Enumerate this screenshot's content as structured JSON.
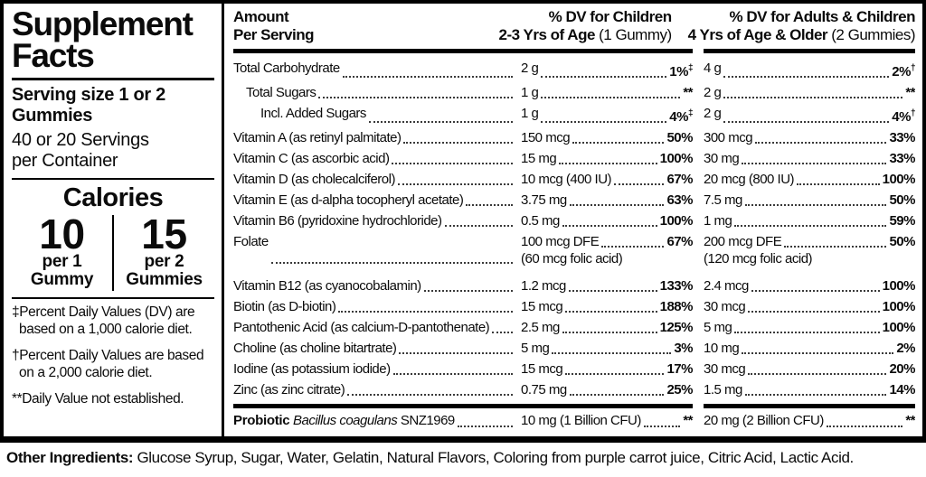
{
  "colors": {
    "ink": "#0b0b0b",
    "rule": "#000000",
    "background": "#ffffff"
  },
  "sidebar": {
    "title_line1": "Supplement",
    "title_line2": "Facts",
    "serving_size_line1": "Serving size 1 or 2",
    "serving_size_line2": "Gummies",
    "servings_line1": "40 or 20 Servings",
    "servings_line2": "per Container",
    "calories": {
      "title": "Calories",
      "left": {
        "value": "10",
        "unit_line1": "per 1",
        "unit_line2": "Gummy"
      },
      "right": {
        "value": "15",
        "unit_line1": "per 2",
        "unit_line2": "Gummies"
      }
    },
    "footnotes": [
      "‡Percent Daily Values (DV) are based on a 1,000 calorie diet.",
      "†Percent Daily Values are based on a 2,000 calorie diet.",
      "**Daily Value not established."
    ]
  },
  "table": {
    "header": {
      "amount_line1": "Amount",
      "amount_line2": "Per Serving",
      "children_line1": "% DV for Children",
      "children_line2_strong": "2-3 Yrs of Age",
      "children_line2_paren": "(1 Gummy)",
      "adults_line1": "% DV for Adults & Children",
      "adults_line2_strong": "4 Yrs of Age & Older",
      "adults_line2_paren": "(2 Gummies)"
    },
    "rows": [
      {
        "label": "Total Carbohydrate",
        "indent": 0,
        "amt1": "2 g",
        "dv1": "1%‡",
        "amt2": "4 g",
        "dv2": "2%†"
      },
      {
        "label": "Total Sugars",
        "indent": 1,
        "amt1": "1 g",
        "dv1": "**",
        "amt2": "2 g",
        "dv2": "**"
      },
      {
        "label": "Incl. Added Sugars",
        "indent": 2,
        "amt1": "1 g",
        "dv1": "4%‡",
        "amt2": "2 g",
        "dv2": "4%†"
      },
      {
        "label": "Vitamin A (as retinyl palmitate)",
        "indent": 0,
        "amt1": "150 mcg",
        "dv1": "50%",
        "amt2": "300 mcg",
        "dv2": "33%"
      },
      {
        "label": "Vitamin C (as ascorbic acid)",
        "indent": 0,
        "amt1": "15 mg",
        "dv1": "100%",
        "amt2": "30 mg",
        "dv2": "33%"
      },
      {
        "label": "Vitamin D (as cholecalciferol)",
        "indent": 0,
        "amt1": "10 mcg (400 IU)",
        "dv1": "67%",
        "amt2": "20 mcg (800 IU)",
        "dv2": "100%"
      },
      {
        "label": "Vitamin E (as d-alpha tocopheryl acetate)",
        "indent": 0,
        "amt1": "3.75 mg",
        "dv1": "63%",
        "amt2": "7.5 mg",
        "dv2": "50%"
      },
      {
        "label": "Vitamin B6 (pyridoxine hydrochloride)",
        "indent": 0,
        "amt1": "0.5 mg",
        "dv1": "100%",
        "amt2": "1 mg",
        "dv2": "59%"
      },
      {
        "label": "Folate",
        "indent": 0,
        "amt1": "100 mcg DFE",
        "amt1_sub": "(60 mcg folic acid)",
        "dv1": "67%",
        "amt2": "200 mcg DFE",
        "amt2_sub": "(120 mcg folic acid)",
        "dv2": "50%"
      },
      {
        "label": "Vitamin B12 (as cyanocobalamin)",
        "indent": 0,
        "group_break": true,
        "amt1": "1.2 mcg",
        "dv1": "133%",
        "amt2": "2.4 mcg",
        "dv2": "100%"
      },
      {
        "label": "Biotin (as D-biotin)",
        "indent": 0,
        "amt1": "15 mcg",
        "dv1": "188%",
        "amt2": "30 mcg",
        "dv2": "100%"
      },
      {
        "label": "Pantothenic Acid (as calcium-D-pantothenate)",
        "indent": 0,
        "amt1": "2.5 mg",
        "dv1": "125%",
        "amt2": "5 mg",
        "dv2": "100%"
      },
      {
        "label": "Choline (as choline bitartrate)",
        "indent": 0,
        "amt1": "5 mg",
        "dv1": "3%",
        "amt2": "10 mg",
        "dv2": "2%"
      },
      {
        "label": "Iodine (as potassium iodide)",
        "indent": 0,
        "amt1": "15 mcg",
        "dv1": "17%",
        "amt2": "30 mcg",
        "dv2": "20%"
      },
      {
        "label": "Zinc (as zinc citrate)",
        "indent": 0,
        "amt1": "0.75 mg",
        "dv1": "25%",
        "amt2": "1.5 mg",
        "dv2": "14%"
      }
    ],
    "probiotic": {
      "name_strong": "Probiotic",
      "name_italic": "Bacillus coagulans",
      "name_plain": "SNZ1969",
      "amt1": "10 mg (1 Billion CFU)",
      "dv1": "**",
      "amt2": "20 mg (2 Billion CFU)",
      "dv2": "**"
    }
  },
  "other_ingredients": {
    "label": "Other Ingredients:",
    "text": "Glucose Syrup, Sugar, Water, Gelatin, Natural Flavors, Coloring from purple carrot juice, Citric Acid, Lactic Acid."
  }
}
